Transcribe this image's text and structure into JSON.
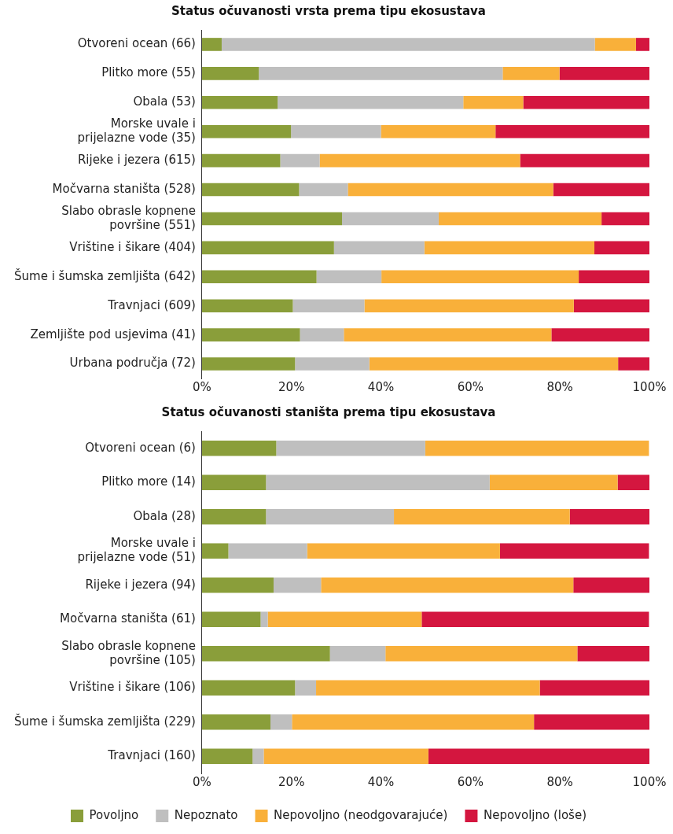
{
  "chart_data": [
    {
      "type": "bar",
      "title": "Status očuvanosti vrsta prema tipu ekosustava",
      "orientation": "horizontal",
      "stacked": true,
      "grid": false,
      "legend": false,
      "categories": [
        "Otvoreni ocean (66)",
        "Plitko more (55)",
        "Obala (53)",
        "Morske uvale i\nprijelazne vode (35)",
        "Rijeke i jezera (615)",
        "Močvarna staništa (528)",
        "Slabo obrasle kopnene\npovršine (551)",
        "Vrištine i šikare (404)",
        "Šume i šumska zemljišta (642)",
        "Travnjaci (609)",
        "Zemljište pod usjevima (41)",
        "Urbana područja (72)"
      ],
      "xlim": [
        0,
        100
      ],
      "xticks": [
        {
          "value": 0,
          "label": "0%"
        },
        {
          "value": 20,
          "label": "20%"
        },
        {
          "value": 40,
          "label": "40%"
        },
        {
          "value": 60,
          "label": "60%"
        },
        {
          "value": 80,
          "label": "80%"
        },
        {
          "value": 100,
          "label": "100%"
        }
      ],
      "series": [
        {
          "color": "#8a9e3a",
          "values": [
            4.4,
            12.7,
            16.9,
            19.9,
            17.5,
            21.7,
            31.3,
            29.5,
            25.6,
            20.3,
            21.9,
            20.8
          ]
        },
        {
          "color": "#bfbfbf",
          "values": [
            83.4,
            54.5,
            41.5,
            20.1,
            8.8,
            10.9,
            21.6,
            20.2,
            14.5,
            16.0,
            9.8,
            16.6
          ]
        },
        {
          "color": "#f9b03a",
          "values": [
            9.2,
            12.7,
            13.4,
            25.6,
            44.8,
            45.9,
            36.4,
            38.0,
            44.1,
            46.8,
            46.4,
            55.6
          ]
        },
        {
          "color": "#d4163f",
          "values": [
            3.0,
            20.1,
            28.2,
            34.4,
            28.9,
            21.5,
            10.7,
            12.3,
            15.8,
            16.9,
            21.9,
            7.0
          ]
        }
      ]
    },
    {
      "type": "bar",
      "title": "Status očuvanosti staništa prema tipu ekosustava",
      "orientation": "horizontal",
      "stacked": true,
      "grid": false,
      "legend": "bottom",
      "categories": [
        "Otvoreni ocean (6)",
        "Plitko more (14)",
        "Obala (28)",
        "Morske uvale i\nprijelazne vode (51)",
        "Rijeke i jezera (94)",
        "Močvarna staništa (61)",
        "Slabo obrasle kopnene\npovršine (105)",
        "Vrištine i šikare (106)",
        "Šume i šumska zemljišta (229)",
        "Travnjaci (160)"
      ],
      "xlim": [
        0,
        100
      ],
      "xticks": [
        {
          "value": 0,
          "label": "0%"
        },
        {
          "value": 20,
          "label": "20%"
        },
        {
          "value": 40,
          "label": "40%"
        },
        {
          "value": 60,
          "label": "60%"
        },
        {
          "value": 80,
          "label": "80%"
        },
        {
          "value": 100,
          "label": "100%"
        }
      ],
      "series": [
        {
          "name": "Povoljno",
          "color": "#8a9e3a",
          "values": [
            16.6,
            14.3,
            14.3,
            5.9,
            16.0,
            13.1,
            28.6,
            20.8,
            15.3,
            11.3
          ]
        },
        {
          "name": "Nepoznato",
          "color": "#bfbfbf",
          "values": [
            33.3,
            50.0,
            28.6,
            17.6,
            10.6,
            1.6,
            12.4,
            4.7,
            4.8,
            2.5
          ]
        },
        {
          "name": "Nepovoljno (neodgovarajuće)",
          "color": "#f9b03a",
          "values": [
            50.0,
            28.6,
            39.3,
            43.1,
            56.4,
            34.4,
            42.9,
            50.0,
            54.1,
            36.8
          ]
        },
        {
          "name": "Nepovoljno (loše)",
          "color": "#d4163f",
          "values": [
            0,
            7.1,
            17.9,
            33.3,
            17.0,
            50.8,
            16.2,
            24.5,
            25.8,
            49.4
          ]
        }
      ]
    }
  ]
}
